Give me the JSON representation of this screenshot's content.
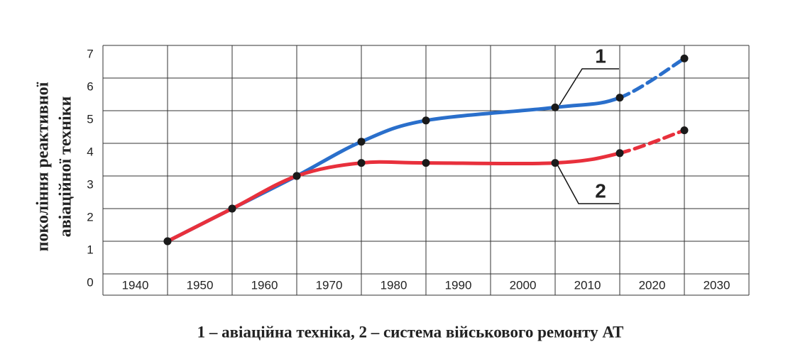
{
  "chart_data": {
    "type": "line",
    "y_label": [
      "покоління реактивної",
      "авіаційної техніки"
    ],
    "caption": "1 – авіаційна техніка,   2 – система військового ремонту АТ",
    "xlim": [
      1935,
      2035
    ],
    "xticks": [
      1940,
      1950,
      1960,
      1970,
      1980,
      1990,
      2000,
      2010,
      2020,
      2030
    ],
    "ylim": [
      0,
      7
    ],
    "yticks": [
      0,
      1,
      2,
      3,
      4,
      5,
      6,
      7
    ],
    "grid": true,
    "dash_from": 2015,
    "x": [
      1945,
      1955,
      1965,
      1975,
      1985,
      2005,
      2015,
      2025
    ],
    "series": [
      {
        "name": "1",
        "color": "#2a6fcb",
        "values": [
          1,
          2,
          3,
          4.05,
          4.7,
          5.1,
          5.4,
          6.6
        ]
      },
      {
        "name": "2",
        "color": "#e8303c",
        "values": [
          1,
          2,
          3,
          3.4,
          3.4,
          3.4,
          3.7,
          4.4
        ]
      }
    ]
  }
}
